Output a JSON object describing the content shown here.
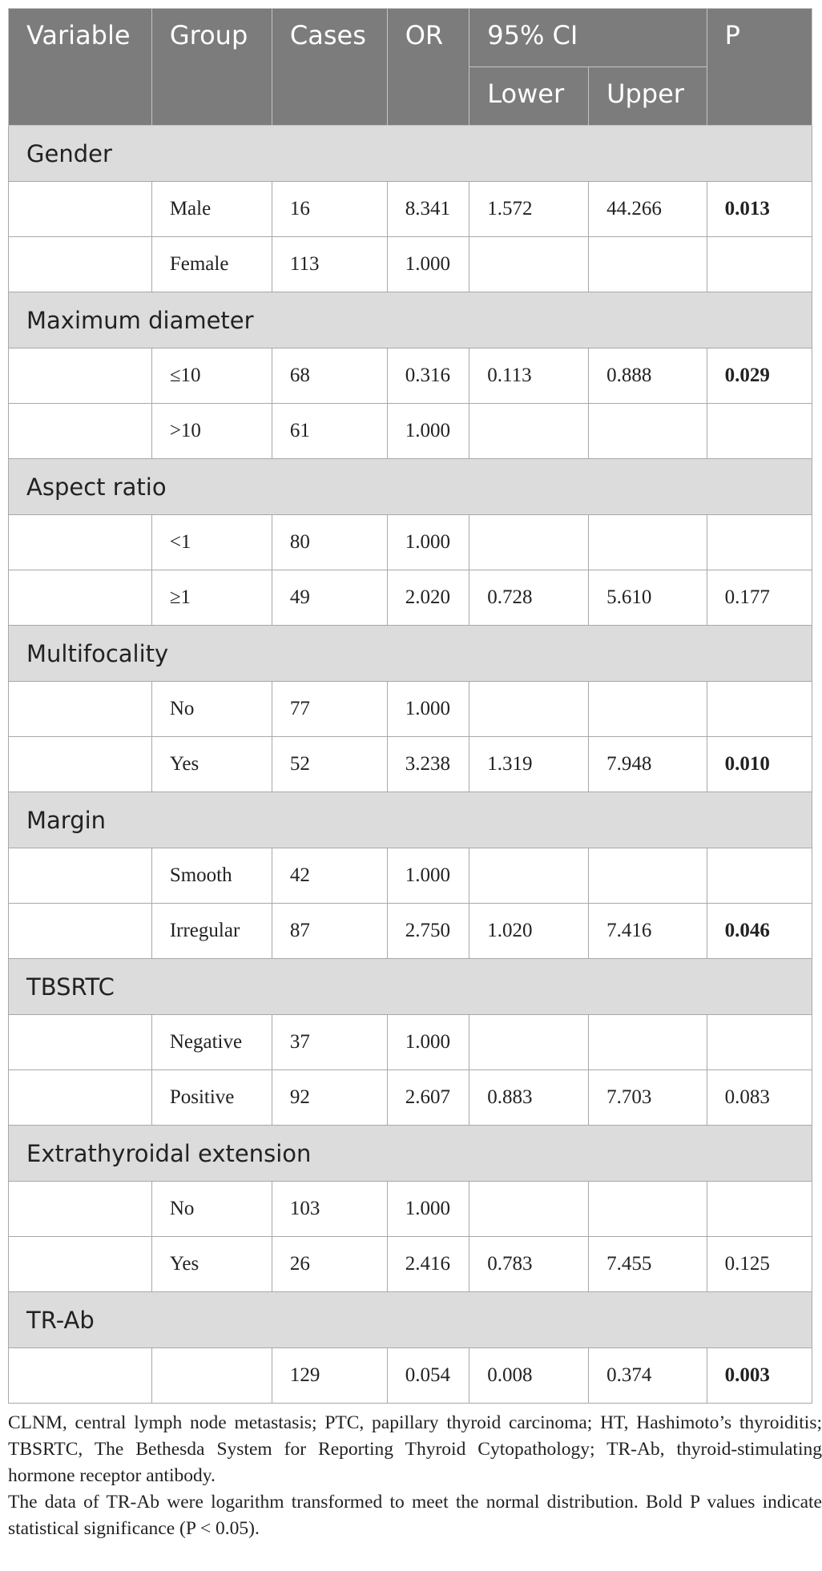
{
  "header": {
    "variable": "Variable",
    "group": "Group",
    "cases": "Cases",
    "or": "OR",
    "ci": "95% CI",
    "lower": "Lower",
    "upper": "Upper",
    "p": "P"
  },
  "sections": [
    {
      "title": "Gender",
      "rows": [
        {
          "group": "Male",
          "cases": "16",
          "or": "8.341",
          "lower": "1.572",
          "upper": "44.266",
          "p": "0.013",
          "significant": true
        },
        {
          "group": "Female",
          "cases": "113",
          "or": "1.000",
          "lower": "",
          "upper": "",
          "p": "",
          "significant": false
        }
      ]
    },
    {
      "title": "Maximum diameter",
      "rows": [
        {
          "group": "≤10",
          "cases": "68",
          "or": "0.316",
          "lower": "0.113",
          "upper": "0.888",
          "p": "0.029",
          "significant": true
        },
        {
          "group": ">10",
          "cases": "61",
          "or": "1.000",
          "lower": "",
          "upper": "",
          "p": "",
          "significant": false
        }
      ]
    },
    {
      "title": "Aspect ratio",
      "rows": [
        {
          "group": "<1",
          "cases": "80",
          "or": "1.000",
          "lower": "",
          "upper": "",
          "p": "",
          "significant": false
        },
        {
          "group": "≥1",
          "cases": "49",
          "or": "2.020",
          "lower": "0.728",
          "upper": "5.610",
          "p": "0.177",
          "significant": false
        }
      ]
    },
    {
      "title": "Multifocality",
      "rows": [
        {
          "group": "No",
          "cases": "77",
          "or": "1.000",
          "lower": "",
          "upper": "",
          "p": "",
          "significant": false
        },
        {
          "group": "Yes",
          "cases": "52",
          "or": "3.238",
          "lower": "1.319",
          "upper": "7.948",
          "p": "0.010",
          "significant": true
        }
      ]
    },
    {
      "title": "Margin",
      "rows": [
        {
          "group": "Smooth",
          "cases": "42",
          "or": "1.000",
          "lower": "",
          "upper": "",
          "p": "",
          "significant": false
        },
        {
          "group": "Irregular",
          "cases": "87",
          "or": "2.750",
          "lower": "1.020",
          "upper": "7.416",
          "p": "0.046",
          "significant": true
        }
      ]
    },
    {
      "title": "TBSRTC",
      "rows": [
        {
          "group": "Negative",
          "cases": "37",
          "or": "1.000",
          "lower": "",
          "upper": "",
          "p": "",
          "significant": false
        },
        {
          "group": "Positive",
          "cases": "92",
          "or": "2.607",
          "lower": "0.883",
          "upper": "7.703",
          "p": "0.083",
          "significant": false
        }
      ]
    },
    {
      "title": "Extrathyroidal extension",
      "rows": [
        {
          "group": "No",
          "cases": "103",
          "or": "1.000",
          "lower": "",
          "upper": "",
          "p": "",
          "significant": false
        },
        {
          "group": "Yes",
          "cases": "26",
          "or": "2.416",
          "lower": "0.783",
          "upper": "7.455",
          "p": "0.125",
          "significant": false
        }
      ]
    },
    {
      "title": "TR-Ab",
      "rows": [
        {
          "group": "",
          "cases": "129",
          "or": "0.054",
          "lower": "0.008",
          "upper": "0.374",
          "p": "0.003",
          "significant": true
        }
      ]
    }
  ],
  "notes": [
    "CLNM, central lymph node metastasis; PTC, papillary thyroid carcinoma; HT, Hashimoto’s thyroiditis; TBSRTC, The Bethesda System for Reporting Thyroid Cytopathology; TR-Ab, thyroid-stimulating hormone receptor antibody.",
    "The data of TR-Ab were logarithm transformed to meet the normal distribution. Bold P values indicate statistical significance (P < 0.05)."
  ],
  "colors": {
    "header_bg": "#7c7c7c",
    "section_bg": "#dcdcdc",
    "grid": "#a8a8a8"
  }
}
